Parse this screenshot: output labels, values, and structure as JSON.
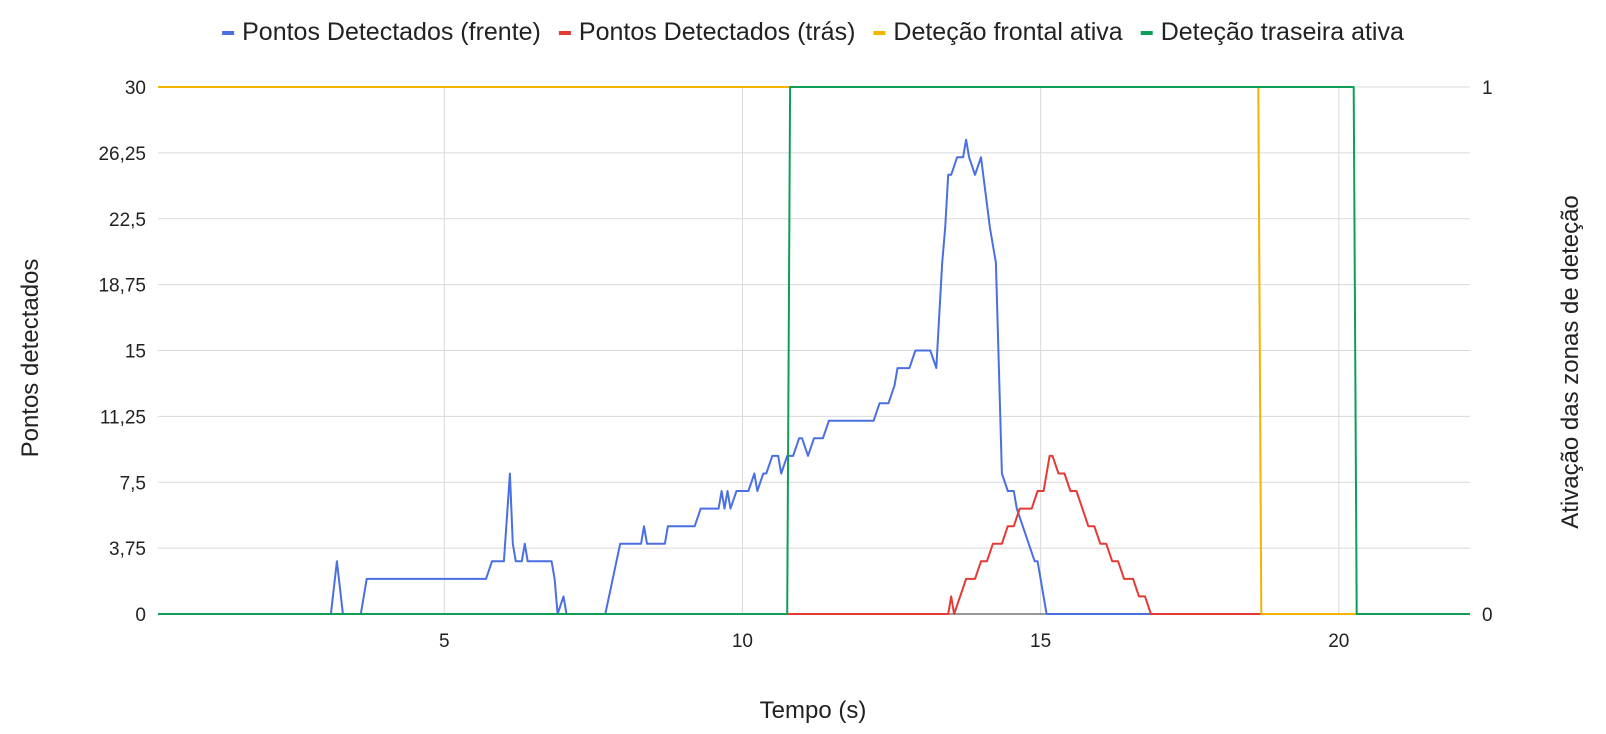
{
  "chart_data": {
    "type": "line",
    "xlabel": "Tempo (s)",
    "ylabel_left": "Pontos detectados",
    "ylabel_right": "Ativação das zonas de deteção",
    "x_range": [
      0.2,
      22.2
    ],
    "x_ticks": [
      5,
      10,
      15,
      20
    ],
    "x_tick_labels": [
      "5",
      "10",
      "15",
      "20"
    ],
    "y_left_range": [
      0,
      30
    ],
    "y_left_ticks": [
      0,
      3.75,
      7.5,
      11.25,
      15,
      18.75,
      22.5,
      26.25,
      30
    ],
    "y_left_tick_labels": [
      "0",
      "3,75",
      "7,5",
      "11,25",
      "15",
      "18,75",
      "22,5",
      "26,25",
      "30"
    ],
    "y_right_range": [
      0,
      1
    ],
    "y_right_ticks": [
      0,
      1
    ],
    "y_right_tick_labels": [
      "0",
      "1"
    ],
    "grid": true,
    "legend_position": "top",
    "series": [
      {
        "name": "Pontos Detectados (frente)",
        "color": "#4a6fe3",
        "axis": "left",
        "points": [
          [
            0.2,
            0
          ],
          [
            3.1,
            0
          ],
          [
            3.2,
            3
          ],
          [
            3.3,
            0
          ],
          [
            3.6,
            0
          ],
          [
            3.7,
            2
          ],
          [
            5.7,
            2
          ],
          [
            5.8,
            3
          ],
          [
            6.0,
            3
          ],
          [
            6.1,
            8
          ],
          [
            6.15,
            4
          ],
          [
            6.2,
            3
          ],
          [
            6.3,
            3
          ],
          [
            6.35,
            4
          ],
          [
            6.4,
            3
          ],
          [
            6.8,
            3
          ],
          [
            6.85,
            2
          ],
          [
            6.9,
            0
          ],
          [
            7.0,
            1
          ],
          [
            7.05,
            0
          ],
          [
            7.7,
            0
          ],
          [
            7.95,
            4
          ],
          [
            8.3,
            4
          ],
          [
            8.35,
            5
          ],
          [
            8.4,
            4
          ],
          [
            8.7,
            4
          ],
          [
            8.75,
            5
          ],
          [
            9.2,
            5
          ],
          [
            9.3,
            6
          ],
          [
            9.6,
            6
          ],
          [
            9.65,
            7
          ],
          [
            9.7,
            6
          ],
          [
            9.75,
            7
          ],
          [
            9.8,
            6
          ],
          [
            9.9,
            7
          ],
          [
            10.1,
            7
          ],
          [
            10.2,
            8
          ],
          [
            10.25,
            7
          ],
          [
            10.35,
            8
          ],
          [
            10.4,
            8
          ],
          [
            10.5,
            9
          ],
          [
            10.6,
            9
          ],
          [
            10.65,
            8
          ],
          [
            10.75,
            9
          ],
          [
            10.85,
            9
          ],
          [
            10.95,
            10
          ],
          [
            11.0,
            10
          ],
          [
            11.1,
            9
          ],
          [
            11.2,
            10
          ],
          [
            11.35,
            10
          ],
          [
            11.45,
            11
          ],
          [
            12.2,
            11
          ],
          [
            12.3,
            12
          ],
          [
            12.45,
            12
          ],
          [
            12.55,
            13
          ],
          [
            12.6,
            14
          ],
          [
            12.8,
            14
          ],
          [
            12.9,
            15
          ],
          [
            13.15,
            15
          ],
          [
            13.25,
            14
          ],
          [
            13.35,
            20
          ],
          [
            13.4,
            22
          ],
          [
            13.45,
            25
          ],
          [
            13.5,
            25
          ],
          [
            13.6,
            26
          ],
          [
            13.7,
            26
          ],
          [
            13.75,
            27
          ],
          [
            13.8,
            26
          ],
          [
            13.9,
            25
          ],
          [
            14.0,
            26
          ],
          [
            14.15,
            22
          ],
          [
            14.25,
            20
          ],
          [
            14.35,
            8
          ],
          [
            14.45,
            7
          ],
          [
            14.55,
            7
          ],
          [
            14.6,
            6
          ],
          [
            14.8,
            4
          ],
          [
            14.9,
            3
          ],
          [
            14.95,
            3
          ],
          [
            15.0,
            2
          ],
          [
            15.05,
            1
          ],
          [
            15.1,
            0
          ],
          [
            22.2,
            0
          ]
        ]
      },
      {
        "name": "Pontos Detectados (trás)",
        "color": "#e53935",
        "axis": "left",
        "points": [
          [
            10.4,
            0
          ],
          [
            13.45,
            0
          ],
          [
            13.5,
            1
          ],
          [
            13.55,
            0
          ],
          [
            13.75,
            2
          ],
          [
            13.9,
            2
          ],
          [
            14.0,
            3
          ],
          [
            14.1,
            3
          ],
          [
            14.2,
            4
          ],
          [
            14.35,
            4
          ],
          [
            14.45,
            5
          ],
          [
            14.55,
            5
          ],
          [
            14.65,
            6
          ],
          [
            14.85,
            6
          ],
          [
            14.95,
            7
          ],
          [
            15.05,
            7
          ],
          [
            15.15,
            9
          ],
          [
            15.2,
            9
          ],
          [
            15.3,
            8
          ],
          [
            15.4,
            8
          ],
          [
            15.5,
            7
          ],
          [
            15.6,
            7
          ],
          [
            15.7,
            6
          ],
          [
            15.8,
            5
          ],
          [
            15.9,
            5
          ],
          [
            16.0,
            4
          ],
          [
            16.1,
            4
          ],
          [
            16.2,
            3
          ],
          [
            16.3,
            3
          ],
          [
            16.4,
            2
          ],
          [
            16.55,
            2
          ],
          [
            16.65,
            1
          ],
          [
            16.75,
            1
          ],
          [
            16.85,
            0
          ],
          [
            22.2,
            0
          ]
        ]
      },
      {
        "name": "Deteção frontal ativa",
        "color": "#f4b400",
        "axis": "right",
        "points": [
          [
            0.2,
            1
          ],
          [
            18.65,
            1
          ],
          [
            18.7,
            0
          ],
          [
            22.2,
            0
          ]
        ]
      },
      {
        "name": "Deteção traseira ativa",
        "color": "#0f9d58",
        "axis": "right",
        "points": [
          [
            0.2,
            0
          ],
          [
            10.75,
            0
          ],
          [
            10.8,
            1
          ],
          [
            20.25,
            1
          ],
          [
            20.3,
            0
          ],
          [
            22.2,
            0
          ]
        ]
      }
    ]
  }
}
